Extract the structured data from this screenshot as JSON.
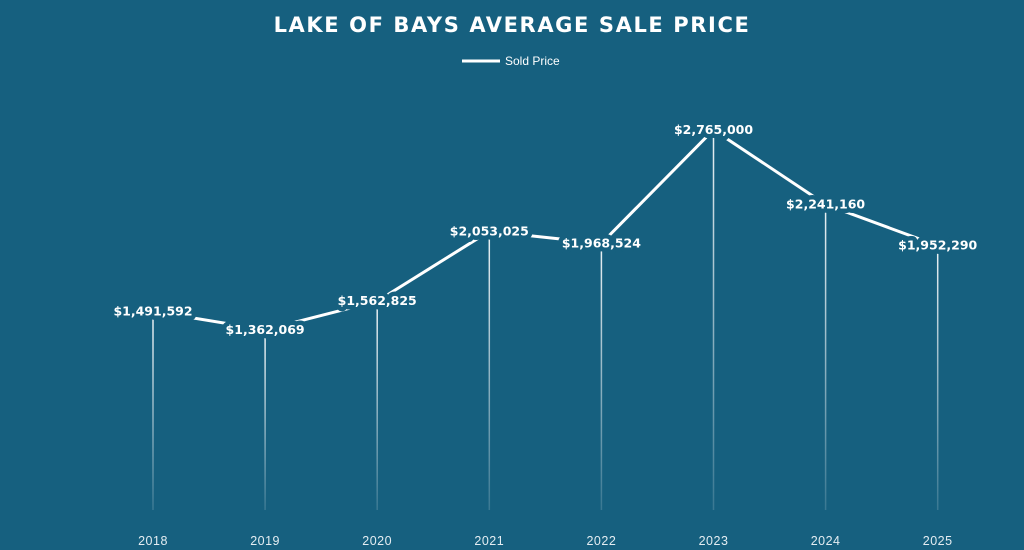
{
  "chart_data": {
    "type": "line",
    "title": "LAKE OF BAYS AVERAGE SALE PRICE",
    "legend": {
      "position": "top-center",
      "entries": [
        "Sold Price"
      ]
    },
    "categories": [
      "2018",
      "2019",
      "2020",
      "2021",
      "2022",
      "2023",
      "2024",
      "2025"
    ],
    "series": [
      {
        "name": "Sold Price",
        "values": [
          1491592,
          1362069,
          1562825,
          2053025,
          1968524,
          2765000,
          2241160,
          1952290
        ],
        "labels": [
          "$1,491,592",
          "$1,362,069",
          "$1,562,825",
          "$2,053,025",
          "$1,968,524",
          "$2,765,000",
          "$2,241,160",
          "$1,952,290"
        ]
      }
    ],
    "xlabel": "",
    "ylabel": "",
    "ylim": [
      0,
      2900000
    ],
    "grid": false,
    "colors": {
      "background": "#16607f",
      "line": "#ffffff"
    }
  }
}
